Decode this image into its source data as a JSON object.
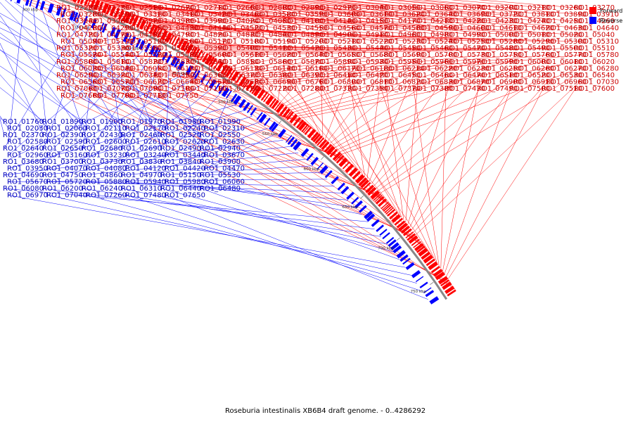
{
  "caption": "Roseburia intestinalis XB6B4 draft genome. - 0..4286292",
  "legend": [
    {
      "key": "forward",
      "label": "Forward",
      "color": "#ff0000"
    },
    {
      "key": "reverse",
      "label": "Reverse",
      "color": "#0000ff"
    }
  ],
  "colors": {
    "forward": "#ff0000",
    "reverse": "#0000ff",
    "backbone": "#888888"
  },
  "ticks": [
    "150 kbp",
    "200 kbp",
    "250 kbp",
    "300 kbp",
    "350 kbp",
    "400 kbp",
    "450 kbp",
    "500 kbp",
    "550 kbp",
    "600 kbp",
    "650 kbp",
    "700 kbp",
    "750 kbp"
  ],
  "forward_genes": [
    "RO1_02250",
    "RO1_02230",
    "RO1_02510",
    "RO1_02670",
    "RO1_02710",
    "RO1_02660",
    "RO1_02800",
    "RO1_02890",
    "RO1_02970",
    "RO1_03040",
    "RO1_03050",
    "RO1_03060",
    "RO1_03070",
    "RO1_03200",
    "RO1_03210",
    "RO1_03260",
    "RO1_03270",
    "RO1_03280",
    "RO1_03290",
    "RO1_03310",
    "RO1_03410",
    "RO1_03420",
    "RO1_03460",
    "RO1_03580",
    "RO1_03590",
    "RO1_03600",
    "RO1_03610",
    "RO1_03620",
    "RO1_03640",
    "RO1_03690",
    "RO1_03720",
    "RO1_03810",
    "RO1_03890",
    "RO1_03910",
    "RO1_03940",
    "RO1_03960",
    "RO1_03970",
    "RO1_03980",
    "RO1_03990",
    "RO1_04020",
    "RO1_04050",
    "RO1_04100",
    "RO1_04140",
    "RO1_04150",
    "RO1_04170",
    "RO1_04210",
    "RO1_04220",
    "RO1_04230",
    "RO1_04240",
    "RO1_04250",
    "RO1_04260",
    "RO1_04280",
    "RO1_04290",
    "RO1_04350",
    "RO1_04430",
    "RO1_04440",
    "RO1_04520",
    "RO1_04530",
    "RO1_04550",
    "RO1_04560",
    "RO1_04570",
    "RO1_04580",
    "RO1_04590",
    "RO1_04600",
    "RO1_04610",
    "RO1_04620",
    "RO1_04630",
    "RO1_04640",
    "RO1_04720",
    "RO1_04770",
    "RO1_04780",
    "RO1_04790",
    "RO1_04820",
    "RO1_04830",
    "RO1_04840",
    "RO1_04890",
    "RO1_04900",
    "RO1_04910",
    "RO1_04960",
    "RO1_04980",
    "RO1_04990",
    "RO1_05000",
    "RO1_05010",
    "RO1_05020",
    "RO1_05040",
    "RO1_05090",
    "RO1_05120",
    "RO1_05130",
    "RO1_05160",
    "RO1_05170",
    "RO1_05180",
    "RO1_05190",
    "RO1_05200",
    "RO1_05210",
    "RO1_05220",
    "RO1_05230",
    "RO1_05240",
    "RO1_05250",
    "RO1_05280",
    "RO1_05290",
    "RO1_05300",
    "RO1_05310",
    "RO1_05320",
    "RO1_05330",
    "RO1_05360",
    "RO1_05380",
    "RO1_05390",
    "RO1_05400",
    "RO1_05410",
    "RO1_05420",
    "RO1_05430",
    "RO1_05440",
    "RO1_05450",
    "RO1_05460",
    "RO1_05470",
    "RO1_05480",
    "RO1_05490",
    "RO1_05500",
    "RO1_05510",
    "RO1_05520",
    "RO1_05540",
    "RO1_05570",
    "RO1_05580",
    "RO1_05600",
    "RO1_05610",
    "RO1_05620",
    "RO1_05640",
    "RO1_05650",
    "RO1_05680",
    "RO1_05690",
    "RO1_05700",
    "RO1_05730",
    "RO1_05750",
    "RO1_05760",
    "RO1_05770",
    "RO1_05780",
    "RO1_05800",
    "RO1_05810",
    "RO1_05820",
    "RO1_05830",
    "RO1_05840",
    "RO1_05850",
    "RO1_05860",
    "RO1_05870",
    "RO1_05890",
    "RO1_05930",
    "RO1_05950",
    "RO1_05960",
    "RO1_05970",
    "RO1_05990",
    "RO1_06000",
    "RO1_06010",
    "RO1_06020",
    "RO1_06030",
    "RO1_06040",
    "RO1_06050",
    "RO1_06100",
    "RO1_06110",
    "RO1_06130",
    "RO1_06140",
    "RO1_06160",
    "RO1_06170",
    "RO1_06180",
    "RO1_06210",
    "RO1_06220",
    "RO1_06230",
    "RO1_06250",
    "RO1_06260",
    "RO1_06270",
    "RO1_06280",
    "RO1_06290",
    "RO1_06320",
    "RO1_06340",
    "RO1_06350",
    "RO1_06360",
    "RO1_06370",
    "RO1_06380",
    "RO1_06390",
    "RO1_06410",
    "RO1_06420",
    "RO1_06450",
    "RO1_06460",
    "RO1_06470",
    "RO1_06510",
    "RO1_06520",
    "RO1_06530",
    "RO1_06540",
    "RO1_06560",
    "RO1_06570",
    "RO1_06620",
    "RO1_06640",
    "RO1_06670",
    "RO1_06680",
    "RO1_06690",
    "RO1_06760",
    "RO1_06800",
    "RO1_06810",
    "RO1_06820",
    "RO1_06830",
    "RO1_06870",
    "RO1_06900",
    "RO1_06910",
    "RO1_06960",
    "RO1_07030",
    "RO1_07060",
    "RO1_07070",
    "RO1_07090",
    "RO1_07100",
    "RO1_07110",
    "RO1_07120",
    "RO1_07220",
    "RO1_07280",
    "RO1_07330",
    "RO1_07350",
    "RO1_07370",
    "RO1_07380",
    "RO1_07430",
    "RO1_07490",
    "RO1_07500",
    "RO1_07510",
    "RO1_07600",
    "RO1_07660",
    "RO1_07700",
    "RO1_07710",
    "RO1_07750"
  ],
  "reverse_genes": [
    "RO1_01760",
    "RO1_01890",
    "RO1_01900",
    "RO1_01970",
    "RO1_01980",
    "RO1_01990",
    "RO1_02030",
    "RO1_02060",
    "RO1_02110",
    "RO1_02170",
    "RO1_02240",
    "RO1_02310",
    "RO1_02370",
    "RO1_02390",
    "RO1_02430",
    "RO1_02460",
    "RO1_02520",
    "RO1_02550",
    "RO1_02580",
    "RO1_02590",
    "RO1_02600",
    "RO1_02610",
    "RO1_02620",
    "RO1_02630",
    "RO1_02640",
    "RO1_02650",
    "RO1_02680",
    "RO1_02690",
    "RO1_02490",
    "RO1_02940",
    "RO1_02960",
    "RO1_03160",
    "RO1_03230",
    "RO1_03240",
    "RO1_03440",
    "RO1_03670",
    "RO1_03680",
    "RO1_03700",
    "RO1_03730",
    "RO1_03830",
    "RO1_03840",
    "RO1_03900",
    "RO1_03950",
    "RO1_04070",
    "RO1_04080",
    "RO1_04120",
    "RO1_04420",
    "RO1_04470",
    "RO1_04690",
    "RO1_04750",
    "RO1_04860",
    "RO1_04970",
    "RO1_05150",
    "RO1_05530",
    "RO1_05670",
    "RO1_05720",
    "RO1_05880",
    "RO1_05940",
    "RO1_05980",
    "RO1_06060",
    "RO1_06080",
    "RO1_06200",
    "RO1_06240",
    "RO1_06310",
    "RO1_06440",
    "RO1_06480",
    "RO1_06970",
    "RO1_07040",
    "RO1_07260",
    "RO1_07480",
    "RO1_07650"
  ]
}
